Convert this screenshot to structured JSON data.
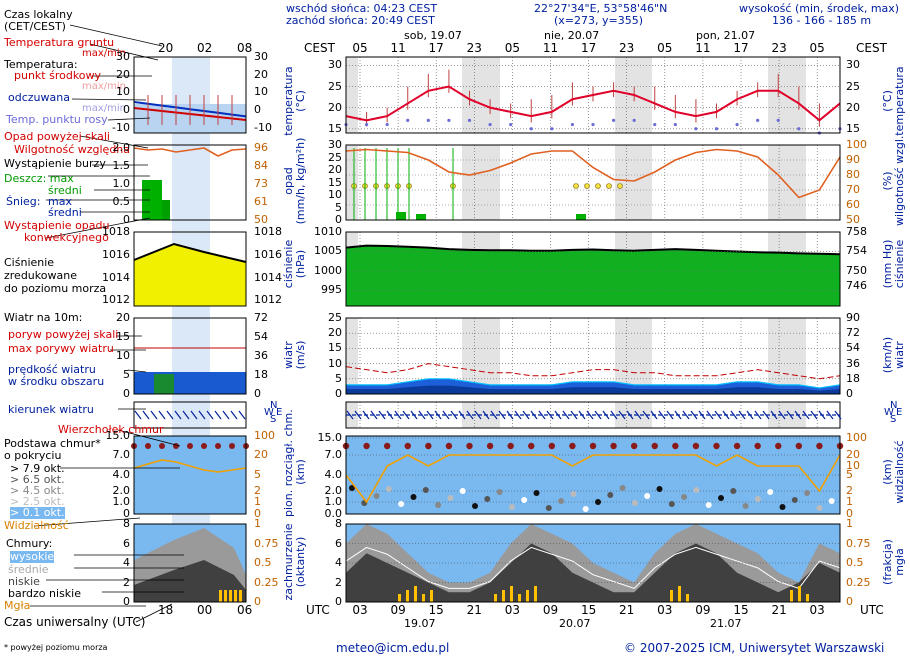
{
  "header": {
    "sunrise": "wschód słońca: 04:23 CEST",
    "sunset": "zachód słońca: 20:49 CEST",
    "coords": "22°27'34\"E, 53°58'46\"N",
    "grid": "(x=273, y=355)",
    "alt_label": "wysokość (min, środek, max)",
    "alt_values": "136 - 166 - 185 m",
    "cest": "CEST",
    "utc": "UTC",
    "days_top": [
      "sob, 19.07",
      "nie, 20.07",
      "pon, 21.07"
    ],
    "days_bottom": [
      "19.07",
      "20.07",
      "21.07"
    ],
    "top_hours": [
      "05",
      "11",
      "17",
      "23",
      "05",
      "11",
      "17",
      "23",
      "05",
      "11",
      "17",
      "23",
      "05"
    ],
    "bottom_hours": [
      "03",
      "09",
      "15",
      "21",
      "03",
      "09",
      "15",
      "21",
      "03",
      "09",
      "15",
      "21",
      "03"
    ]
  },
  "legend": {
    "time_title": "Czas lokalny\n(CET/CEST)",
    "legend_top_ticks": [
      "20",
      "02",
      "08"
    ],
    "legend_bottom_ticks": [
      "18",
      "00",
      "06"
    ],
    "utc_title": "Czas uniwersalny (UTC)",
    "footnote": "* powyżej poziomu morza",
    "p1": [
      "Temperatura gruntu",
      "max/min",
      "Temperatura:",
      "punkt środkowy",
      "max/min",
      "odczuwana",
      "max/min",
      "Temp. punktu rosy"
    ],
    "p2": [
      "Opad powyżej skali",
      "Wilgotność względna",
      "Wystąpienie burzy",
      "Deszcz: max",
      "średni",
      "Śnieg:",
      "max",
      "średni",
      "Wystąpienie opadu",
      "konwekcyjnego"
    ],
    "p3": [
      "Ciśnienie",
      "zredukowane",
      "do poziomu morza"
    ],
    "p4": [
      "Wiatr na 10m:",
      "poryw powyżej skali",
      "max porywy wiatru",
      "prędkość wiatru",
      "w środku obszaru"
    ],
    "p5": [
      "kierunek wiatru"
    ],
    "p6": [
      "Wierzchołek chmur",
      "Podstawa chmur*",
      "o pokryciu",
      "> 7.9 okt.",
      "> 6.5 okt.",
      "> 4.5 okt.",
      "> 2.5 okt.",
      "> 0.1 okt.",
      "Widzialność"
    ],
    "p7": [
      "Chmury:",
      "wysokie",
      "średnie",
      "niskie",
      "bardzo niskie",
      "Mgła"
    ]
  },
  "axis_labels": {
    "temp_left": "temperatura\n(°C)",
    "temp_right": "(°C)\ntemperatura",
    "precip_left": "opad\n(mm/h, kg/m²h)",
    "precip_right": "(%)\nwilgotność wzgl.",
    "press_left": "ciśnienie\n(hPa)",
    "press_right": "(mm Hg)\nciśnienie",
    "wind_left": "wiatr\n(m/s)",
    "wind_right": "(km/h)\nwiatr",
    "cloud_left": "pion. rozciągł. chm.\n(km)",
    "cloud_right": "(km)\nwidzialność",
    "cover_left": "zachmurzenie\n(oktanty)",
    "cover_right": "(frakcja)\nmgła",
    "compass": [
      "N",
      "W",
      "S",
      "E"
    ]
  },
  "footer": {
    "email": "meteo@icm.edu.pl",
    "copyright": "© 2007-2025 ICM, Uniwersytet Warszawski"
  },
  "colors": {
    "temp": "#e0002a",
    "dew": "#6b6bd8",
    "humidity": "#e06020",
    "rain": "#00b000",
    "pressure": "#f0f000",
    "wind": "#0050d0",
    "gust": "#c00000",
    "sky": "#7ab8f0",
    "cloudDark": "#404040",
    "fog": "#ffc000",
    "visibility": "#f0a000"
  },
  "chart_data": [
    {
      "type": "line",
      "name": "temperature",
      "x_hours_utc": [
        0,
        3,
        6,
        9,
        12,
        15,
        18,
        21,
        24,
        27,
        30,
        33,
        36,
        39,
        42,
        45,
        48,
        51,
        54,
        57,
        60,
        63,
        66,
        69,
        72
      ],
      "series": [
        {
          "name": "punkt środkowy",
          "values": [
            18,
            17,
            18,
            21,
            24,
            25,
            22,
            20,
            19,
            18,
            19,
            22,
            23,
            24,
            23,
            21,
            19,
            18,
            19,
            22,
            24,
            24,
            21,
            17,
            21
          ]
        },
        {
          "name": "Temp. punktu rosy",
          "values": [
            16,
            16,
            16,
            17,
            17,
            17,
            17,
            16,
            16,
            15,
            15,
            16,
            16,
            17,
            17,
            16,
            16,
            15,
            15,
            16,
            17,
            17,
            15,
            14,
            15
          ]
        }
      ],
      "ylim": [
        14,
        32
      ],
      "yticks_left": [
        15,
        20,
        25,
        30
      ],
      "yticks_right": [
        15,
        20,
        25,
        30
      ]
    },
    {
      "type": "bar",
      "name": "precipitation",
      "series": [
        {
          "name": "Wilgotność względna",
          "values": [
            96,
            97,
            96,
            95,
            90,
            82,
            80,
            83,
            88,
            94,
            96,
            96,
            85,
            77,
            76,
            82,
            90,
            95,
            97,
            96,
            92,
            80,
            65,
            70,
            92
          ]
        },
        {
          "name": "Deszcz: średni",
          "values": [
            0,
            1,
            2,
            1,
            0,
            0,
            0,
            0,
            0,
            0,
            0,
            0,
            0,
            0,
            0,
            0,
            0,
            0,
            0,
            0,
            0,
            0,
            0,
            0,
            0
          ]
        }
      ],
      "ylim": [
        0,
        30
      ],
      "yticks_left": [
        0,
        5,
        10,
        15,
        20,
        25,
        30
      ],
      "yticks_right": [
        50,
        60,
        70,
        80,
        90,
        100
      ]
    },
    {
      "type": "area",
      "name": "pressure",
      "values": [
        1006,
        1006.5,
        1006.4,
        1006.2,
        1006,
        1005.6,
        1005.4,
        1005.3,
        1005.3,
        1005.2,
        1005.2,
        1005.4,
        1005.5,
        1005.3,
        1005.2,
        1005.4,
        1005.6,
        1005.4,
        1005.2,
        1005,
        1004.8,
        1004.7,
        1004.5,
        1004.4,
        1004.3
      ],
      "ylim": [
        991,
        1010
      ],
      "yticks_left": [
        995,
        1000,
        1005,
        1010
      ],
      "yticks_right": [
        746,
        750,
        754,
        758
      ]
    },
    {
      "type": "area",
      "name": "wind",
      "series": [
        {
          "name": "prędkość wiatru",
          "values": [
            3,
            3,
            3,
            4,
            5,
            5,
            4,
            3,
            3,
            3,
            3,
            4,
            4,
            4,
            3,
            3,
            3,
            3,
            3,
            4,
            4,
            3,
            3,
            2,
            3
          ]
        },
        {
          "name": "max porywy wiatru",
          "values": [
            9,
            8,
            7,
            8,
            10,
            9,
            8,
            7,
            7,
            6,
            6,
            7,
            8,
            8,
            7,
            7,
            6,
            6,
            6,
            7,
            8,
            7,
            6,
            5,
            6
          ]
        }
      ],
      "ylim": [
        0,
        25
      ],
      "yticks_left": [
        0,
        5,
        10,
        15,
        20,
        25
      ],
      "yticks_right": [
        0,
        18,
        36,
        54,
        72,
        90
      ]
    },
    {
      "type": "scatter",
      "name": "clouds",
      "series": [
        {
          "name": "Wierzchołek chmur",
          "values": [
            12,
            11.5,
            12,
            12,
            11.5,
            12,
            11.8,
            12,
            11.9,
            12,
            12,
            11.9,
            12,
            12,
            11.8,
            11.9,
            12,
            12,
            12,
            11.8,
            11.5,
            11.8,
            12,
            12,
            12
          ]
        },
        {
          "name": "Widzialność",
          "values": [
            8,
            1,
            16,
            20,
            18,
            20,
            20,
            20,
            20,
            20,
            20,
            18,
            20,
            20,
            20,
            20,
            20,
            20,
            19,
            20,
            18,
            16,
            18,
            2,
            20
          ]
        }
      ],
      "ylim": [
        0,
        15
      ],
      "yticks_left": [
        0,
        1.0,
        2.0,
        4.0,
        7.0,
        15.0
      ],
      "yticks_right": [
        0,
        1,
        2,
        5,
        10,
        20,
        100
      ]
    },
    {
      "type": "area",
      "name": "cloud_cover",
      "series": [
        {
          "name": "niskie",
          "values": [
            3,
            5,
            4,
            3,
            2,
            1,
            1,
            2,
            4,
            6,
            5,
            3,
            2,
            1,
            1,
            3,
            5,
            6,
            5,
            3,
            2,
            1,
            2,
            4,
            3
          ]
        },
        {
          "name": "wysokie",
          "values": [
            6,
            8,
            7,
            5,
            3,
            2,
            2,
            3,
            6,
            8,
            7,
            6,
            4,
            3,
            2,
            5,
            7,
            8,
            7,
            6,
            5,
            3,
            2,
            6,
            5
          ]
        }
      ],
      "ylim": [
        0,
        8
      ],
      "yticks_left": [
        0,
        2,
        4,
        6,
        8
      ],
      "yticks_right": [
        0,
        0.25,
        0.5,
        0.75,
        1
      ]
    }
  ]
}
